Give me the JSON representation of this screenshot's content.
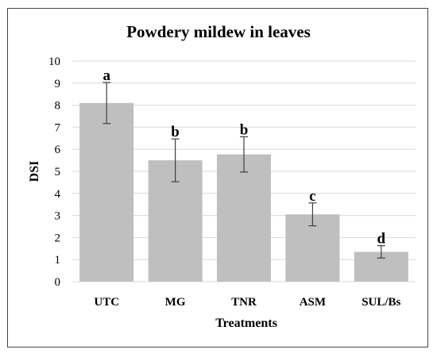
{
  "chart_data": {
    "type": "bar",
    "title": "Powdery mildew in leaves",
    "xlabel": "Treatments",
    "ylabel": "DSI",
    "categories": [
      "UTC",
      "MG",
      "TNR",
      "ASM",
      "SUL/Bs"
    ],
    "values": [
      8.1,
      5.5,
      5.77,
      3.05,
      1.35
    ],
    "error_bars": [
      0.93,
      0.97,
      0.8,
      0.52,
      0.28
    ],
    "significance_letters": [
      "a",
      "b",
      "b",
      "c",
      "d"
    ],
    "ylim": [
      0,
      10
    ],
    "yticks": [
      0,
      1,
      2,
      3,
      4,
      5,
      6,
      7,
      8,
      9,
      10
    ],
    "grid": "horizontal",
    "legend": "none",
    "colors": {
      "bar": "#bfbfbf",
      "grid": "#d9d9d9",
      "error": "#404040",
      "frame": "#444444"
    }
  }
}
